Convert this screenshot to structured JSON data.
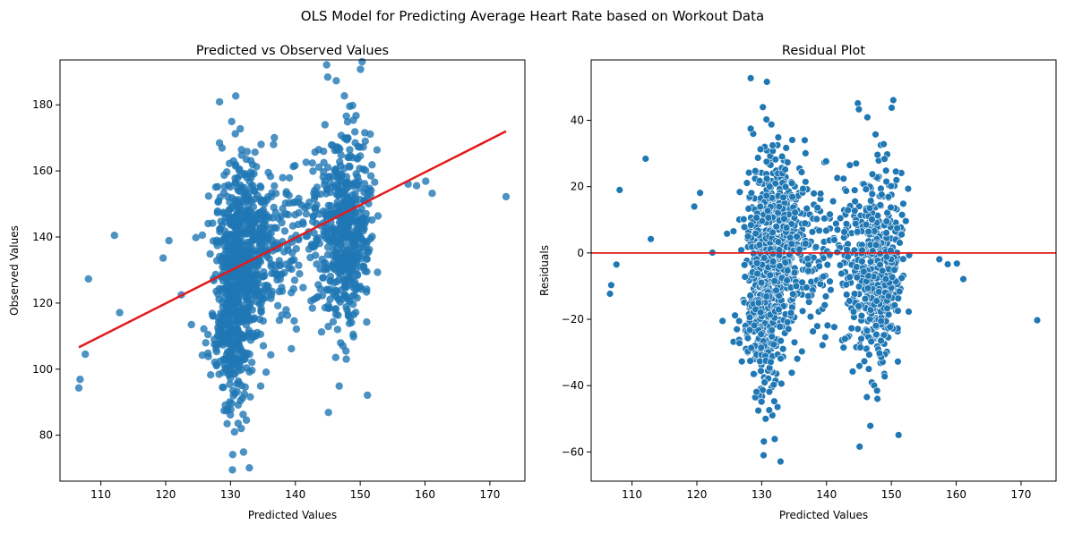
{
  "figure": {
    "title": "OLS Model for Predicting Average Heart Rate based on Workout Data"
  },
  "colors": {
    "points": "#1f77b4",
    "fit_line": "#e31a1c",
    "zero_line": "#e31a1c"
  },
  "chart_data": [
    {
      "type": "scatter",
      "title": "Predicted vs Observed Values",
      "xlabel": "Predicted Values",
      "ylabel": "Observed Values",
      "xlim": [
        103.7,
        175.4
      ],
      "ylim": [
        66.1,
        193.6
      ],
      "xticks": [
        110,
        120,
        130,
        140,
        150,
        160,
        170
      ],
      "yticks": [
        80,
        100,
        120,
        140,
        160,
        180
      ],
      "grid": false,
      "regression_line": {
        "x": [
          106.6,
          172.5
        ],
        "y": [
          106.6,
          172.0
        ]
      },
      "clusters": [
        {
          "xc": 130.8,
          "sx": 1.7,
          "yc": 122,
          "sy": 17,
          "n": 520
        },
        {
          "xc": 133.0,
          "sx": 2.8,
          "yc": 137,
          "sy": 13,
          "n": 380
        },
        {
          "xc": 147.5,
          "sx": 2.1,
          "yc": 142,
          "sy": 15,
          "n": 520
        },
        {
          "xc": 140.5,
          "sx": 3.0,
          "yc": 140,
          "sy": 12,
          "n": 90
        }
      ],
      "outliers": [
        {
          "x": 106.6,
          "y": 94.3
        },
        {
          "x": 106.8,
          "y": 96.9
        },
        {
          "x": 107.6,
          "y": 104.5
        },
        {
          "x": 108.1,
          "y": 127.3
        },
        {
          "x": 112.1,
          "y": 140.5
        },
        {
          "x": 112.9,
          "y": 117.1
        },
        {
          "x": 119.6,
          "y": 133.6
        },
        {
          "x": 120.5,
          "y": 138.9
        },
        {
          "x": 122.4,
          "y": 122.5
        },
        {
          "x": 130.3,
          "y": 69.5
        },
        {
          "x": 132.9,
          "y": 70.1
        },
        {
          "x": 145.1,
          "y": 86.9
        },
        {
          "x": 157.4,
          "y": 156.0
        },
        {
          "x": 158.7,
          "y": 155.5
        },
        {
          "x": 160.1,
          "y": 156.9
        },
        {
          "x": 161.1,
          "y": 153.2
        },
        {
          "x": 172.5,
          "y": 152.2
        },
        {
          "x": 145.0,
          "y": 188.4
        },
        {
          "x": 146.3,
          "y": 187.3
        },
        {
          "x": 128.3,
          "y": 180.9
        },
        {
          "x": 130.8,
          "y": 182.7
        }
      ]
    },
    {
      "type": "scatter",
      "title": "Residual Plot",
      "xlabel": "Predicted Values",
      "ylabel": "Residuals",
      "xlim": [
        103.7,
        175.4
      ],
      "ylim": [
        -68.8,
        58.2
      ],
      "xticks": [
        110,
        120,
        130,
        140,
        150,
        160,
        170
      ],
      "yticks": [
        -60,
        -40,
        -20,
        0,
        20,
        40
      ],
      "grid": false,
      "reference_line_y": 0,
      "clusters": [
        {
          "xc": 130.8,
          "sx": 1.7,
          "yc": -9,
          "sy": 17,
          "n": 520
        },
        {
          "xc": 133.0,
          "sx": 2.8,
          "yc": 3,
          "sy": 13,
          "n": 380
        },
        {
          "xc": 147.5,
          "sx": 2.1,
          "yc": -5,
          "sy": 15,
          "n": 520
        },
        {
          "xc": 140.5,
          "sx": 3.0,
          "yc": 0,
          "sy": 12,
          "n": 90
        }
      ],
      "outliers": [
        {
          "x": 106.6,
          "y": -12.3
        },
        {
          "x": 106.8,
          "y": -9.7
        },
        {
          "x": 107.6,
          "y": -3.5
        },
        {
          "x": 108.1,
          "y": 19.0
        },
        {
          "x": 112.1,
          "y": 28.4
        },
        {
          "x": 112.9,
          "y": 4.2
        },
        {
          "x": 119.6,
          "y": 14.0
        },
        {
          "x": 120.5,
          "y": 18.1
        },
        {
          "x": 122.4,
          "y": 0.1
        },
        {
          "x": 130.3,
          "y": -61.0
        },
        {
          "x": 132.9,
          "y": -62.9
        },
        {
          "x": 145.1,
          "y": -58.4
        },
        {
          "x": 157.4,
          "y": -1.9
        },
        {
          "x": 158.7,
          "y": -3.4
        },
        {
          "x": 160.1,
          "y": -3.2
        },
        {
          "x": 161.1,
          "y": -7.9
        },
        {
          "x": 172.5,
          "y": -20.3
        },
        {
          "x": 145.0,
          "y": 43.3
        },
        {
          "x": 146.3,
          "y": 40.9
        },
        {
          "x": 128.3,
          "y": 52.7
        },
        {
          "x": 130.8,
          "y": 51.6
        }
      ]
    }
  ]
}
